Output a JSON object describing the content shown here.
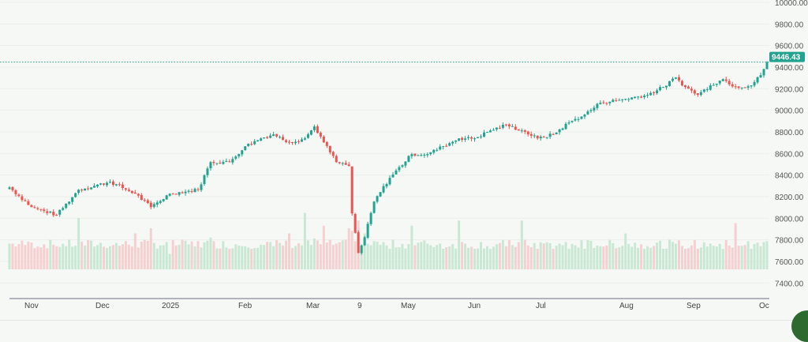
{
  "chart_data": {
    "type": "candlestick",
    "title": "",
    "last_price_label": "9446.43",
    "last_price": 9446.43,
    "ylim": [
      7300,
      10000
    ],
    "y_ticks": [
      "10000.00",
      "9800.00",
      "9600.00",
      "9400.00",
      "9200.00",
      "9000.00",
      "8800.00",
      "8600.00",
      "8400.00",
      "8200.00",
      "8000.00",
      "7800.00",
      "7600.00",
      "7400.00"
    ],
    "y_tick_values": [
      10000,
      9800,
      9600,
      9400,
      9200,
      9000,
      8800,
      8600,
      8400,
      8200,
      8000,
      7800,
      7600,
      7400
    ],
    "x_ticks": [
      "Nov",
      "Dec",
      "2025",
      "Feb",
      "Mar",
      "9",
      "May",
      "Jun",
      "Jul",
      "Aug",
      "Sep",
      "Oc"
    ],
    "colors": {
      "up": "#22a38f",
      "down": "#ef5350",
      "up_volume": "#c9e8d4",
      "down_volume": "#f6cfd0",
      "price_line": "#22a38f",
      "background": "#f6f8f5"
    },
    "anchor_closes": [
      {
        "i": 0,
        "c": 8286,
        "v": 50
      },
      {
        "i": 7,
        "c": 8103,
        "v": 52
      },
      {
        "i": 15,
        "c": 8030,
        "v": 45
      },
      {
        "i": 22,
        "c": 8264,
        "v": 100
      },
      {
        "i": 32,
        "c": 8337,
        "v": 45
      },
      {
        "i": 40,
        "c": 8227,
        "v": 70
      },
      {
        "i": 45,
        "c": 8103,
        "v": 80
      },
      {
        "i": 51,
        "c": 8227,
        "v": 30
      },
      {
        "i": 60,
        "c": 8264,
        "v": 55
      },
      {
        "i": 64,
        "c": 8520,
        "v": 62
      },
      {
        "i": 70,
        "c": 8520,
        "v": 40
      },
      {
        "i": 75,
        "c": 8667,
        "v": 45
      },
      {
        "i": 80,
        "c": 8740,
        "v": 48
      },
      {
        "i": 84,
        "c": 8777,
        "v": 45
      },
      {
        "i": 89,
        "c": 8703,
        "v": 70
      },
      {
        "i": 94,
        "c": 8740,
        "v": 110
      },
      {
        "i": 97,
        "c": 8850,
        "v": 60
      },
      {
        "i": 100,
        "c": 8703,
        "v": 85
      },
      {
        "i": 104,
        "c": 8520,
        "v": 50
      },
      {
        "i": 108,
        "c": 8484,
        "v": 80
      },
      {
        "i": 109,
        "c": 8044,
        "v": 75
      },
      {
        "i": 111,
        "c": 7678,
        "v": 95
      },
      {
        "i": 113,
        "c": 7824,
        "v": 70
      },
      {
        "i": 116,
        "c": 8154,
        "v": 55
      },
      {
        "i": 121,
        "c": 8374,
        "v": 40
      },
      {
        "i": 128,
        "c": 8594,
        "v": 85
      },
      {
        "i": 133,
        "c": 8594,
        "v": 50
      },
      {
        "i": 138,
        "c": 8667,
        "v": 40
      },
      {
        "i": 143,
        "c": 8740,
        "v": 95
      },
      {
        "i": 148,
        "c": 8740,
        "v": 40
      },
      {
        "i": 153,
        "c": 8813,
        "v": 40
      },
      {
        "i": 158,
        "c": 8864,
        "v": 45
      },
      {
        "i": 163,
        "c": 8813,
        "v": 95
      },
      {
        "i": 168,
        "c": 8740,
        "v": 40
      },
      {
        "i": 173,
        "c": 8777,
        "v": 40
      },
      {
        "i": 178,
        "c": 8887,
        "v": 40
      },
      {
        "i": 183,
        "c": 8960,
        "v": 40
      },
      {
        "i": 188,
        "c": 9070,
        "v": 45
      },
      {
        "i": 196,
        "c": 9106,
        "v": 70
      },
      {
        "i": 203,
        "c": 9143,
        "v": 45
      },
      {
        "i": 208,
        "c": 9216,
        "v": 40
      },
      {
        "i": 212,
        "c": 9304,
        "v": 50
      },
      {
        "i": 215,
        "c": 9216,
        "v": 40
      },
      {
        "i": 219,
        "c": 9143,
        "v": 40
      },
      {
        "i": 223,
        "c": 9231,
        "v": 50
      },
      {
        "i": 227,
        "c": 9289,
        "v": 40
      },
      {
        "i": 231,
        "c": 9216,
        "v": 90
      },
      {
        "i": 236,
        "c": 9231,
        "v": 40
      },
      {
        "i": 239,
        "c": 9326,
        "v": 45
      },
      {
        "i": 241,
        "c": 9446.43,
        "v": 55
      }
    ]
  }
}
